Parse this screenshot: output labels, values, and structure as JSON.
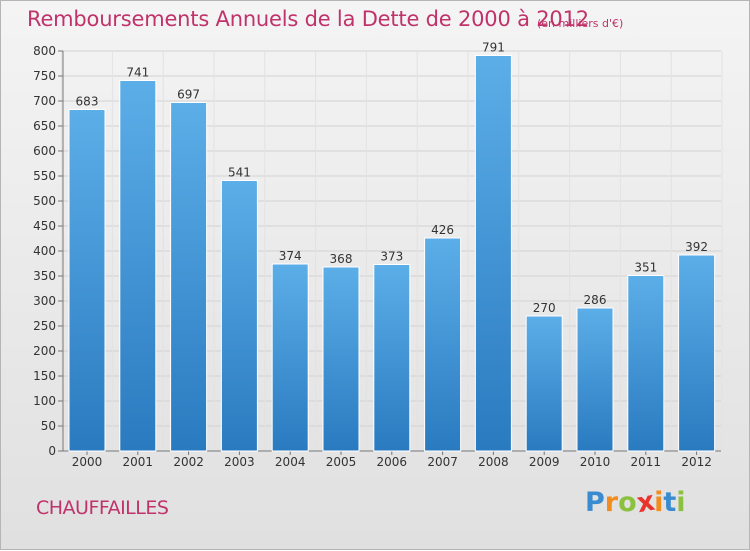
{
  "title": "Remboursements Annuels de la Dette de 2000 à 2012",
  "unit_note": "(en milliers d'€)",
  "commune": "CHAUFFAILLES",
  "logo": {
    "letters": [
      "P",
      "r",
      "o",
      "x",
      "i",
      "t",
      "i"
    ],
    "colors": [
      "#3a8bd0",
      "#f28c1f",
      "#8cc13f",
      "#e9342b",
      "#f28c1f",
      "#3a8bd0",
      "#8cc13f"
    ]
  },
  "chart_data": {
    "type": "bar",
    "categories": [
      "2000",
      "2001",
      "2002",
      "2003",
      "2004",
      "2005",
      "2006",
      "2007",
      "2008",
      "2009",
      "2010",
      "2011",
      "2012"
    ],
    "values": [
      683,
      741,
      697,
      541,
      374,
      368,
      373,
      426,
      791,
      270,
      286,
      351,
      392
    ],
    "ylim": [
      0,
      800
    ],
    "yticks": [
      0,
      50,
      100,
      150,
      200,
      250,
      300,
      350,
      400,
      450,
      500,
      550,
      600,
      650,
      700,
      750,
      800
    ],
    "grid": true,
    "bar_color": "#4a9ee0"
  }
}
